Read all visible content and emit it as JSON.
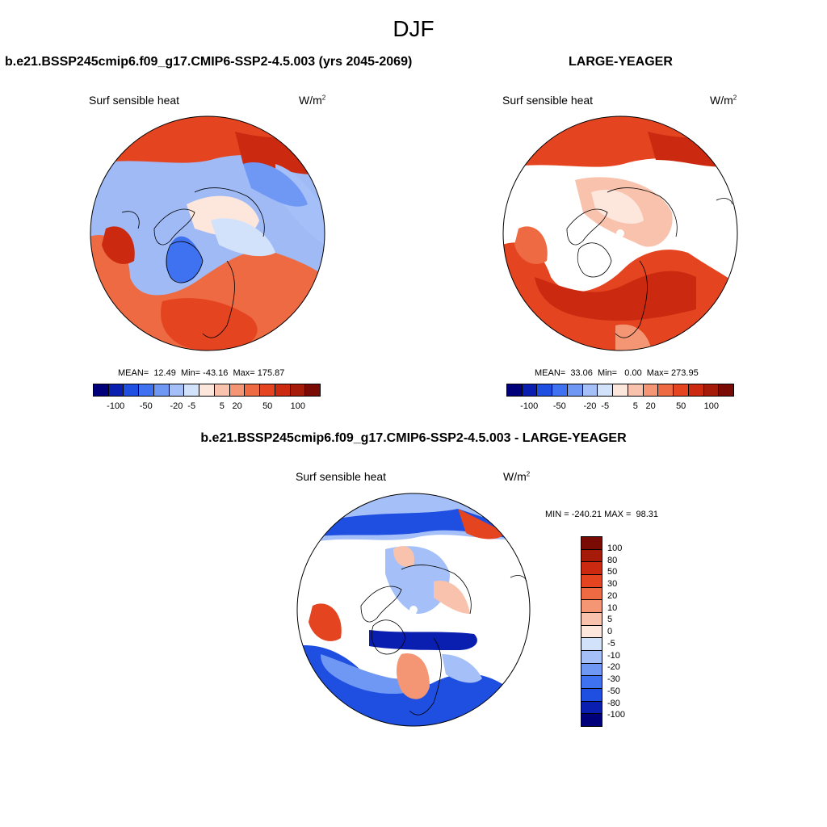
{
  "title": "DJF",
  "panels": [
    {
      "title": "b.e21.BSSP245cmip6.f09_g17.CMIP6-SSP2-4.5.003 (yrs 2045-2069)",
      "variable": "Surf sensible heat",
      "units": "W/m",
      "units_exp": "2",
      "stats": "MEAN=  12.49  Min= -43.16  Max= 175.87",
      "colorbar_ticks": [
        "-100",
        "-50",
        "-20",
        "-5",
        "5",
        "20",
        "50",
        "100"
      ]
    },
    {
      "title": "LARGE-YEAGER",
      "variable": "Surf sensible heat",
      "units": "W/m",
      "units_exp": "2",
      "stats": "MEAN=  33.06  Min=   0.00  Max= 273.95",
      "colorbar_ticks": [
        "-100",
        "-50",
        "-20",
        "-5",
        "5",
        "20",
        "50",
        "100"
      ]
    },
    {
      "title": "b.e21.BSSP245cmip6.f09_g17.CMIP6-SSP2-4.5.003 - LARGE-YEAGER",
      "variable": "Surf sensible heat",
      "units": "W/m",
      "units_exp": "2",
      "stats": "MIN = -240.21 MAX =  98.31",
      "colorbar_ticks": [
        "100",
        "80",
        "50",
        "30",
        "20",
        "10",
        "5",
        "0",
        "-5",
        "-10",
        "-20",
        "-30",
        "-50",
        "-80",
        "-100"
      ]
    }
  ],
  "colors": {
    "top_scale": [
      "#00007a",
      "#0a1fb0",
      "#1f4fe0",
      "#3f72f0",
      "#6f98f5",
      "#a5c0f8",
      "#d2e2fb",
      "#fde6dc",
      "#f9c2ac",
      "#f49674",
      "#ee6a42",
      "#e54420",
      "#cc2a10",
      "#a51a08",
      "#7a0a04"
    ],
    "diff_scale": [
      "#7a0a04",
      "#a51a08",
      "#cc2a10",
      "#e54420",
      "#ee6a42",
      "#f49674",
      "#f9c2ac",
      "#fde6dc",
      "#d2e2fb",
      "#a5c0f8",
      "#6f98f5",
      "#3f72f0",
      "#1f4fe0",
      "#0a1fb0",
      "#00007a"
    ]
  }
}
